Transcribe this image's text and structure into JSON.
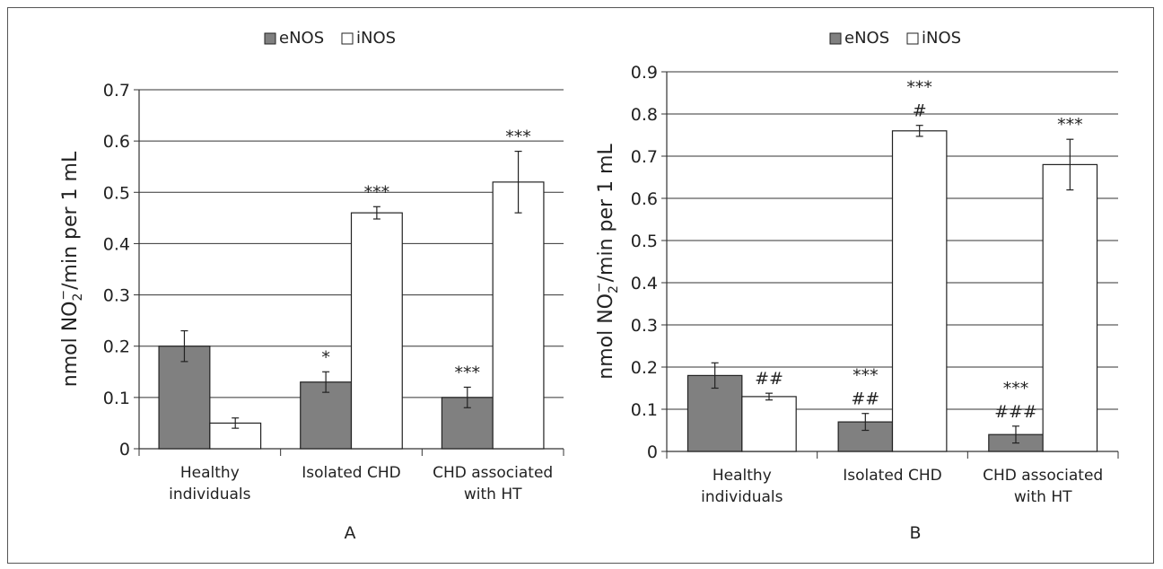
{
  "figure": {
    "colors": {
      "eNOS": "#808080",
      "iNOS": "#ffffff",
      "stroke": "#222222",
      "grid": "#333333"
    }
  },
  "chart_data": [
    {
      "type": "bar",
      "panel_label": "A",
      "ylabel": "nmol NO2−/min per 1 mL",
      "ylabel_parts": {
        "pre": "nmol NO",
        "sub": "2",
        "sup": "−",
        "post": "/min per 1 mL"
      },
      "ylim": [
        0,
        0.7
      ],
      "yticks": [
        "0",
        "0.1",
        "0.2",
        "0.3",
        "0.4",
        "0.5",
        "0.6",
        "0.7"
      ],
      "grid": true,
      "legend_position": "top-center",
      "categories": [
        [
          "Healthy",
          "individuals"
        ],
        [
          "Isolated CHD"
        ],
        [
          "CHD associated",
          "with HT"
        ]
      ],
      "series": [
        {
          "name": "eNOS",
          "values": [
            0.2,
            0.13,
            0.1
          ],
          "errors": [
            0.03,
            0.02,
            0.02
          ],
          "annotations": [
            [],
            [
              "*"
            ],
            [
              "***"
            ]
          ]
        },
        {
          "name": "iNOS",
          "values": [
            0.05,
            0.46,
            0.52
          ],
          "errors": [
            0.01,
            0.012,
            0.06
          ],
          "annotations": [
            [],
            [
              "***"
            ],
            [
              "***"
            ]
          ]
        }
      ]
    },
    {
      "type": "bar",
      "panel_label": "B",
      "ylabel": "nmol NO2−/min per 1 mL",
      "ylabel_parts": {
        "pre": "nmol NO",
        "sub": "2",
        "sup": "−",
        "post": "/min per 1 mL"
      },
      "ylim": [
        0,
        0.9
      ],
      "yticks": [
        "0",
        "0.1",
        "0.2",
        "0.3",
        "0.4",
        "0.5",
        "0.6",
        "0.7",
        "0.8",
        "0.9"
      ],
      "grid": true,
      "legend_position": "top-center",
      "categories": [
        [
          "Healthy",
          "individuals"
        ],
        [
          "Isolated CHD"
        ],
        [
          "CHD associated",
          "with HT"
        ]
      ],
      "series": [
        {
          "name": "eNOS",
          "values": [
            0.18,
            0.07,
            0.04
          ],
          "errors": [
            0.03,
            0.02,
            0.02
          ],
          "annotations": [
            [],
            [
              "##",
              "***"
            ],
            [
              "###",
              "***"
            ]
          ]
        },
        {
          "name": "iNOS",
          "values": [
            0.13,
            0.76,
            0.68
          ],
          "errors": [
            0.008,
            0.013,
            0.06
          ],
          "annotations": [
            [
              "##"
            ],
            [
              "#",
              "***"
            ],
            [
              "***"
            ]
          ]
        }
      ]
    }
  ]
}
